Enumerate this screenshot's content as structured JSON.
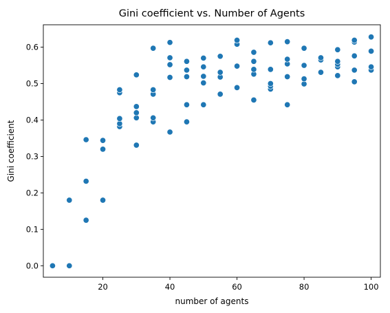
{
  "chart_data": {
    "type": "scatter",
    "title": "Gini coefficient vs. Number of Agents",
    "xlabel": "number of agents",
    "ylabel": "Gini coefficient",
    "xlim": [
      2.25,
      102.75
    ],
    "ylim": [
      -0.0315,
      0.6615
    ],
    "xticks": [
      20,
      40,
      60,
      80,
      100
    ],
    "yticks": [
      0.0,
      0.1,
      0.2,
      0.3,
      0.4,
      0.5,
      0.6
    ],
    "xtick_labels": [
      "20",
      "40",
      "60",
      "80",
      "100"
    ],
    "ytick_labels": [
      "0.0",
      "0.1",
      "0.2",
      "0.3",
      "0.4",
      "0.5",
      "0.6"
    ],
    "grid": false,
    "legend": false,
    "color": "#1f77b4",
    "points": [
      [
        5,
        0.0
      ],
      [
        10,
        0.0
      ],
      [
        10,
        0.18
      ],
      [
        15,
        0.125
      ],
      [
        15,
        0.232
      ],
      [
        15,
        0.346
      ],
      [
        20,
        0.18
      ],
      [
        20,
        0.32
      ],
      [
        20,
        0.344
      ],
      [
        25,
        0.382
      ],
      [
        25,
        0.39
      ],
      [
        25,
        0.404
      ],
      [
        25,
        0.475
      ],
      [
        25,
        0.483
      ],
      [
        30,
        0.331
      ],
      [
        30,
        0.406
      ],
      [
        30,
        0.42
      ],
      [
        30,
        0.437
      ],
      [
        30,
        0.524
      ],
      [
        35,
        0.395
      ],
      [
        35,
        0.406
      ],
      [
        35,
        0.471
      ],
      [
        35,
        0.483
      ],
      [
        35,
        0.597
      ],
      [
        40,
        0.367
      ],
      [
        40,
        0.517
      ],
      [
        40,
        0.552
      ],
      [
        40,
        0.571
      ],
      [
        40,
        0.613
      ],
      [
        45,
        0.395
      ],
      [
        45,
        0.442
      ],
      [
        45,
        0.519
      ],
      [
        45,
        0.537
      ],
      [
        45,
        0.561
      ],
      [
        50,
        0.442
      ],
      [
        50,
        0.502
      ],
      [
        50,
        0.52
      ],
      [
        50,
        0.546
      ],
      [
        50,
        0.57
      ],
      [
        55,
        0.471
      ],
      [
        55,
        0.518
      ],
      [
        55,
        0.531
      ],
      [
        55,
        0.575
      ],
      [
        60,
        0.489
      ],
      [
        60,
        0.548
      ],
      [
        60,
        0.608
      ],
      [
        60,
        0.619
      ],
      [
        65,
        0.455
      ],
      [
        65,
        0.526
      ],
      [
        65,
        0.539
      ],
      [
        65,
        0.561
      ],
      [
        65,
        0.586
      ],
      [
        70,
        0.485
      ],
      [
        70,
        0.493
      ],
      [
        70,
        0.5
      ],
      [
        70,
        0.539
      ],
      [
        70,
        0.612
      ],
      [
        75,
        0.442
      ],
      [
        75,
        0.519
      ],
      [
        75,
        0.554
      ],
      [
        75,
        0.567
      ],
      [
        75,
        0.615
      ],
      [
        80,
        0.499
      ],
      [
        80,
        0.513
      ],
      [
        80,
        0.55
      ],
      [
        80,
        0.597
      ],
      [
        85,
        0.531
      ],
      [
        85,
        0.565
      ],
      [
        85,
        0.571
      ],
      [
        90,
        0.522
      ],
      [
        90,
        0.546
      ],
      [
        90,
        0.553
      ],
      [
        90,
        0.561
      ],
      [
        90,
        0.593
      ],
      [
        95,
        0.505
      ],
      [
        95,
        0.537
      ],
      [
        95,
        0.576
      ],
      [
        95,
        0.614
      ],
      [
        95,
        0.619
      ],
      [
        100,
        0.537
      ],
      [
        100,
        0.546
      ],
      [
        100,
        0.589
      ],
      [
        100,
        0.628
      ]
    ]
  }
}
